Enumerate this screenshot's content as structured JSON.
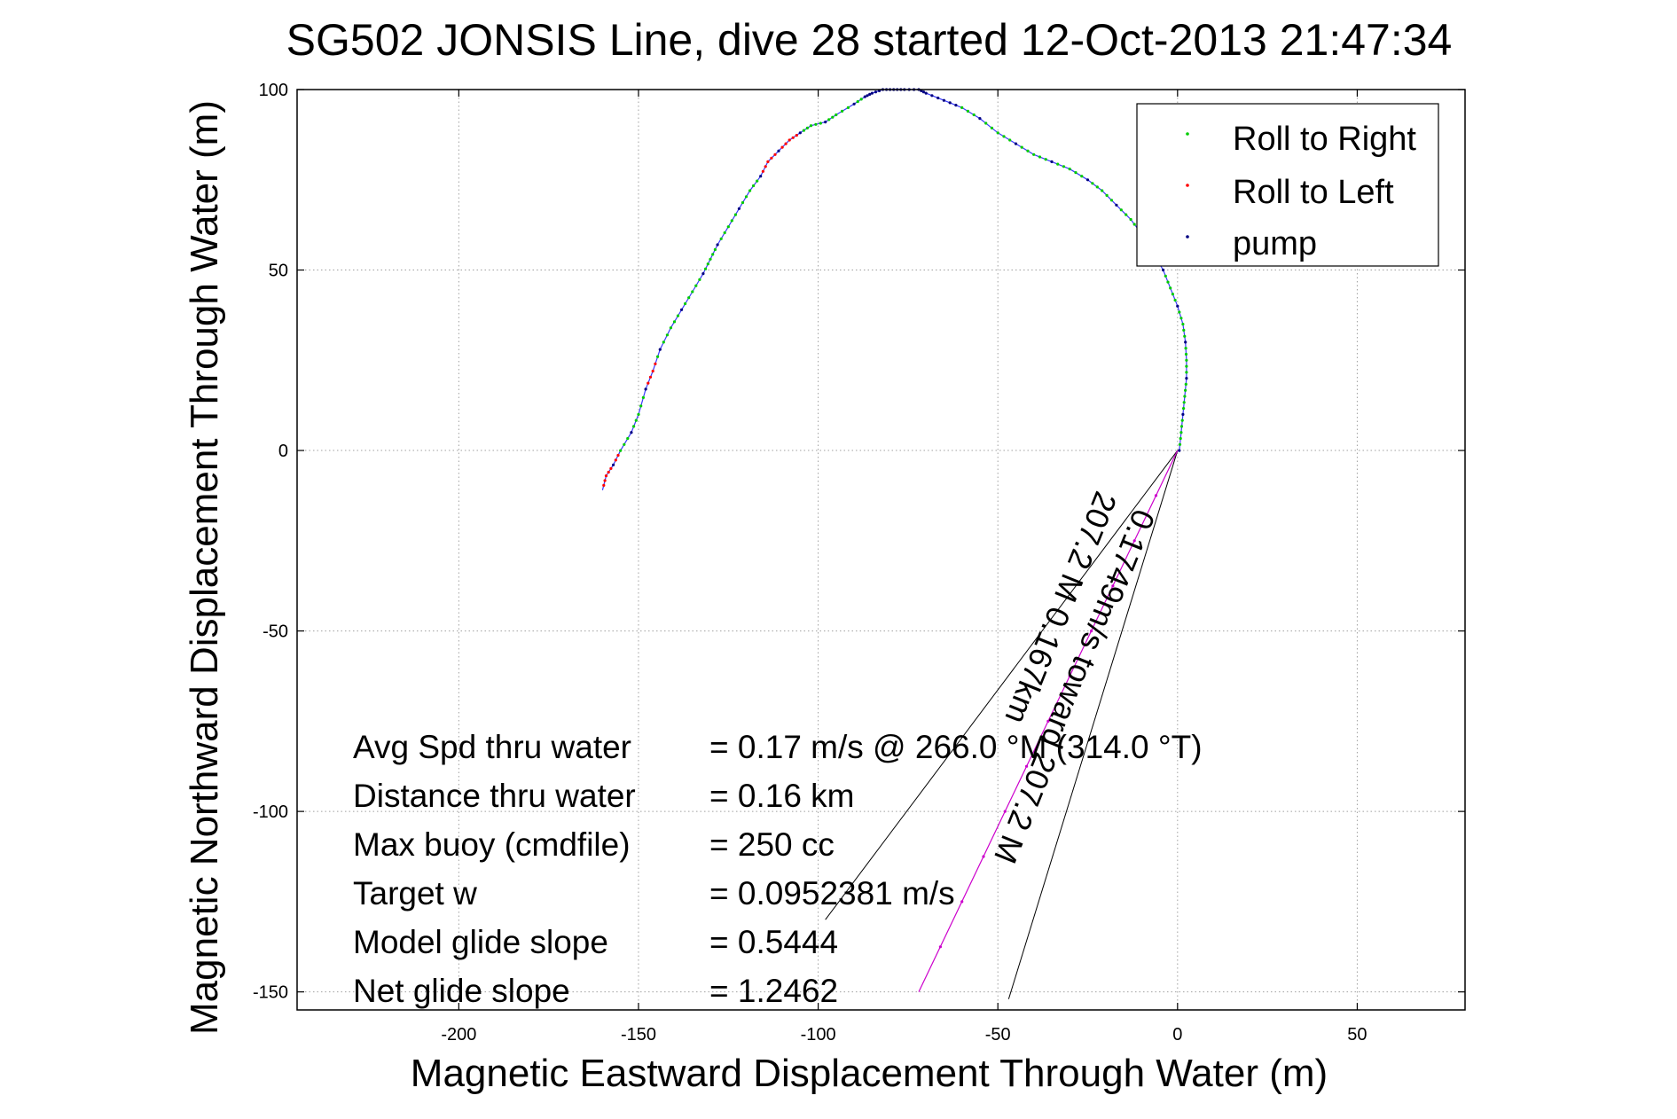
{
  "chart_data": {
    "type": "line",
    "title": "SG502 JONSIS Line, dive 28 started 12-Oct-2013 21:47:34",
    "xlabel": "Magnetic Eastward Displacement Through Water (m)",
    "ylabel": "Magnetic Northward Displacement Through Water (m)",
    "xlim": [
      -245,
      80
    ],
    "ylim": [
      -155,
      100
    ],
    "xticks": [
      -200,
      -150,
      -100,
      -50,
      0,
      50
    ],
    "yticks": [
      -150,
      -100,
      -50,
      0,
      50,
      100
    ],
    "xtick_labels": [
      "-200",
      "-150",
      "-100",
      "-50",
      "0",
      "50"
    ],
    "ytick_labels": [
      "-150",
      "-100",
      "-50",
      "0",
      "50",
      "100"
    ],
    "grid": true,
    "legend_position": "top-right",
    "colors": {
      "track": "#3a3aff",
      "roll_right": "#00cc00",
      "roll_left": "#ff0000",
      "pump": "#000080",
      "current": "#cc00cc",
      "axes": "#000000",
      "grid": "#a0a0a0"
    },
    "legend": [
      {
        "name": "Roll to Right",
        "color": "#00cc00"
      },
      {
        "name": "Roll to Left",
        "color": "#ff0000"
      },
      {
        "name": "pump",
        "color": "#000080"
      }
    ],
    "series": [
      {
        "name": "track",
        "x": [
          0.5,
          1,
          1.5,
          2,
          2.5,
          2.5,
          2.2,
          1.5,
          0,
          -2,
          -4,
          -7,
          -10,
          -13,
          -17,
          -21,
          -25,
          -30,
          -35,
          -40,
          -45,
          -50,
          -55,
          -60,
          -65,
          -70,
          -72,
          -76,
          -79,
          -82,
          -85,
          -87,
          -90,
          -95,
          -98,
          -102,
          -105,
          -108,
          -111,
          -114,
          -116,
          -119,
          -122,
          -125,
          -128,
          -130,
          -132,
          -135,
          -138,
          -141,
          -144,
          -146,
          -148,
          -150,
          -152,
          -155,
          -157,
          -159,
          -160
        ],
        "y": [
          0,
          5,
          10,
          15,
          20,
          25,
          30,
          35,
          40,
          45,
          50,
          55,
          60,
          64,
          68,
          72,
          75,
          78,
          80,
          82,
          85,
          88,
          92,
          95,
          97,
          99,
          100,
          100,
          100,
          100,
          99,
          98,
          96,
          93,
          91,
          90,
          88,
          86,
          83,
          80,
          76,
          72,
          67,
          62,
          57,
          53,
          49,
          44,
          39,
          34,
          28,
          22,
          17,
          10,
          5,
          0,
          -4,
          -7,
          -11
        ]
      },
      {
        "name": "depth-averaged current",
        "x": [
          0,
          -72
        ],
        "y": [
          0,
          -150
        ]
      }
    ],
    "current_wedge": {
      "apex": [
        0,
        0
      ],
      "line1_end": [
        -98,
        -130
      ],
      "line2_end": [
        -47,
        -152
      ]
    },
    "annotations": [
      "0.1749m/s toward 207.2 M",
      "207.2 M 0.167km"
    ]
  },
  "stats": [
    {
      "label": "Avg Spd thru water",
      "value": "=  0.17 m/s @ 266.0 °M (314.0 °T)"
    },
    {
      "label": "Distance thru water",
      "value": "=  0.16 km"
    },
    {
      "label": "Max buoy (cmdfile)",
      "value": "= 250 cc"
    },
    {
      "label": "Target w",
      "value": "= 0.0952381 m/s"
    },
    {
      "label": "Model glide slope",
      "value": "= 0.5444"
    },
    {
      "label": "Net glide slope",
      "value": "= 1.2462"
    }
  ]
}
